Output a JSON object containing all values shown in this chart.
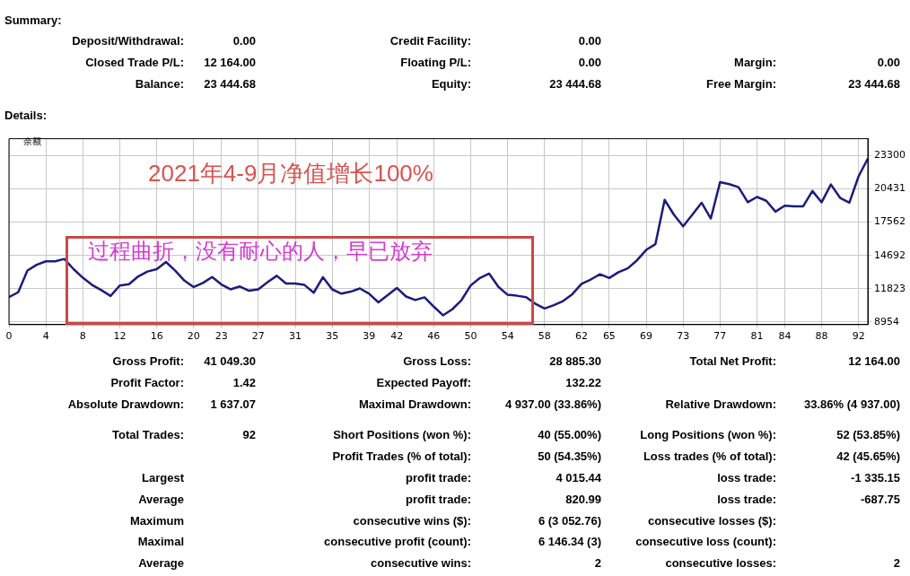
{
  "chart_data": {
    "type": "line",
    "x": [
      0,
      1,
      2,
      3,
      4,
      5,
      6,
      7,
      8,
      9,
      10,
      11,
      12,
      13,
      14,
      15,
      16,
      17,
      18,
      19,
      20,
      21,
      22,
      23,
      24,
      25,
      26,
      27,
      28,
      29,
      30,
      31,
      32,
      33,
      34,
      35,
      36,
      37,
      38,
      39,
      40,
      41,
      42,
      43,
      44,
      45,
      46,
      47,
      48,
      49,
      50,
      51,
      52,
      53,
      54,
      55,
      56,
      57,
      58,
      59,
      60,
      61,
      62,
      63,
      64,
      65,
      66,
      67,
      68,
      69,
      70,
      71,
      72,
      73,
      74,
      75,
      76,
      77,
      78,
      79,
      80,
      81,
      82,
      83,
      84,
      85,
      86,
      87,
      88,
      89,
      90,
      91,
      92,
      93
    ],
    "series": [
      {
        "color": "#1c1c7c",
        "values": [
          11100,
          11520,
          13390,
          13890,
          14190,
          14190,
          14390,
          13510,
          12770,
          12150,
          11700,
          11200,
          12100,
          12220,
          12890,
          13310,
          13510,
          14130,
          13390,
          12520,
          11970,
          12320,
          12840,
          12190,
          11770,
          12020,
          11650,
          11770,
          12390,
          12940,
          12270,
          12270,
          12150,
          11480,
          12820,
          11770,
          11400,
          11570,
          11850,
          11400,
          10650,
          11270,
          11890,
          11150,
          10850,
          11080,
          10280,
          9530,
          10050,
          10840,
          12110,
          12750,
          13130,
          11980,
          11300,
          11220,
          11090,
          10530,
          10120,
          10410,
          10760,
          11350,
          12240,
          12620,
          13070,
          12750,
          13250,
          13580,
          14270,
          15170,
          15670,
          19490,
          18210,
          17200,
          18210,
          19240,
          17880,
          21010,
          20840,
          20580,
          19280,
          19740,
          19410,
          18470,
          18980,
          18930,
          18930,
          20250,
          19280,
          20810,
          19660,
          19240,
          21520,
          23050
        ]
      }
    ],
    "xlim": [
      0,
      93
    ],
    "xticks": [
      0,
      4,
      8,
      12,
      16,
      20,
      23,
      27,
      31,
      35,
      39,
      42,
      46,
      50,
      54,
      58,
      62,
      65,
      69,
      73,
      77,
      81,
      84,
      88,
      92
    ],
    "ylim": [
      8730,
      24760
    ],
    "yticks": [
      8954,
      11823,
      14692,
      17562,
      20431,
      23300
    ],
    "grid": true,
    "annotations": [
      "Summary:",
      "Deposit/Withdrawal:",
      "0.00",
      "Credit Facility:",
      "0.00",
      "Closed Trade P/L:",
      "12 164.00",
      "Floating P/L:",
      "0.00",
      "Margin:",
      "0.00",
      "Balance:",
      "23 444.68",
      "Equity:",
      "23 444.68",
      "Free Margin:",
      "23 444.68",
      "Details:",
      "Gross Profit:",
      "41 049.30",
      "Gross Loss:",
      "28 885.30",
      "Total Net Profit:",
      "12 164.00",
      "Profit Factor:",
      "1.42",
      "Expected Payoff:",
      "132.22",
      "Absolute Drawdown:",
      "1 637.07",
      "Maximal Drawdown:",
      "4 937.00 (33.86%)",
      "Relative Drawdown:",
      "33.86% (4 937.00)",
      "Total Trades:",
      "92",
      "Short Positions (won %):",
      "40 (55.00%)",
      "Long Positions (won %):",
      "52 (53.85%)",
      "Profit Trades (% of total):",
      "50 (54.35%)",
      "Loss trades (% of total):",
      "42 (45.65%)",
      "Largest",
      "profit trade:",
      "4 015.44",
      "loss trade:",
      "-1 335.15",
      "Average",
      "profit trade:",
      "820.99",
      "loss trade:",
      "-687.75",
      "Maximum",
      "consecutive wins ($):",
      "6 (3 052.76)",
      "consecutive losses ($):",
      "Maximal",
      "consecutive profit (count):",
      "6 146.34 (3)",
      "consecutive loss (count):",
      "Average",
      "consecutive wins:",
      "2",
      "consecutive losses:",
      "2",
      "余额",
      "2021年4-9月净值增长100%",
      "过程曲折，没有耐心的人，早已放弃"
    ]
  }
}
